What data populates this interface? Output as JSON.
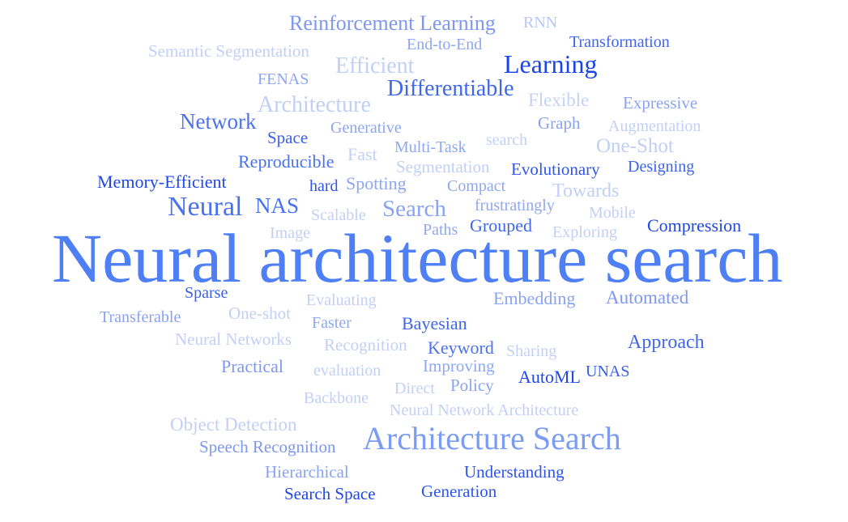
{
  "words": [
    {
      "text": "Neural architecture search",
      "color": "#4f7ff5"
    },
    {
      "text": "Architecture Search",
      "color": "#7a9cf2"
    },
    {
      "text": "Reinforcement Learning",
      "color": "#7d98ee"
    },
    {
      "text": "RNN",
      "color": "#b8c8f5"
    },
    {
      "text": "End-to-End",
      "color": "#8da8f2"
    },
    {
      "text": "Transformation",
      "color": "#3f66ec"
    },
    {
      "text": "Semantic Segmentation",
      "color": "#c2d0f6"
    },
    {
      "text": "Efficient",
      "color": "#c2d0f6"
    },
    {
      "text": "Learning",
      "color": "#1a45e6"
    },
    {
      "text": "FENAS",
      "color": "#8ca6f2"
    },
    {
      "text": "Differentiable",
      "color": "#3e67ec"
    },
    {
      "text": "Architecture",
      "color": "#c0cff6"
    },
    {
      "text": "Flexible",
      "color": "#c5d2f6"
    },
    {
      "text": "Expressive",
      "color": "#8aa4f1"
    },
    {
      "text": "Network",
      "color": "#4a72ee"
    },
    {
      "text": "Space",
      "color": "#3a60eb"
    },
    {
      "text": "Generative",
      "color": "#8ca6f2"
    },
    {
      "text": "Graph",
      "color": "#8aa3f0"
    },
    {
      "text": "Augmentation",
      "color": "#c3d0f6"
    },
    {
      "text": "search",
      "color": "#c3d0f6"
    },
    {
      "text": "Fast",
      "color": "#c3d0f6"
    },
    {
      "text": "Multi-Task",
      "color": "#8ea8f2"
    },
    {
      "text": "One-Shot",
      "color": "#c0cff6"
    },
    {
      "text": "Reproducible",
      "color": "#4a72ee"
    },
    {
      "text": "Segmentation",
      "color": "#c3d0f6"
    },
    {
      "text": "Evolutionary",
      "color": "#2f57ea"
    },
    {
      "text": "Designing",
      "color": "#3a62ec"
    },
    {
      "text": "Memory-Efficient",
      "color": "#1f48e7"
    },
    {
      "text": "hard",
      "color": "#2d55ea"
    },
    {
      "text": "Spotting",
      "color": "#8ca6f2"
    },
    {
      "text": "Compact",
      "color": "#8ea8f2"
    },
    {
      "text": "Towards",
      "color": "#c3d0f6"
    },
    {
      "text": "Neural",
      "color": "#4a72ee"
    },
    {
      "text": "NAS",
      "color": "#4a72ee"
    },
    {
      "text": "Scalable",
      "color": "#c3d0f6"
    },
    {
      "text": "Search",
      "color": "#8aa3f0"
    },
    {
      "text": "frustratingly",
      "color": "#8ea8f2"
    },
    {
      "text": "Mobile",
      "color": "#c3d0f6"
    },
    {
      "text": "Image",
      "color": "#c3d0f6"
    },
    {
      "text": "Paths",
      "color": "#8ea8f2"
    },
    {
      "text": "Grouped",
      "color": "#3e67ec"
    },
    {
      "text": "Exploring",
      "color": "#c3d0f6"
    },
    {
      "text": "Compression",
      "color": "#1f48e7"
    },
    {
      "text": "Sparse",
      "color": "#3a60eb"
    },
    {
      "text": "Evaluating",
      "color": "#c3d0f6"
    },
    {
      "text": "Embedding",
      "color": "#8aa3f0"
    },
    {
      "text": "Automated",
      "color": "#7d98ee"
    },
    {
      "text": "Transferable",
      "color": "#8aa3f0"
    },
    {
      "text": "One-shot",
      "color": "#c3d0f6"
    },
    {
      "text": "Faster",
      "color": "#8ea8f2"
    },
    {
      "text": "Bayesian",
      "color": "#3e67ec"
    },
    {
      "text": "Neural Networks",
      "color": "#c3d0f6"
    },
    {
      "text": "Recognition",
      "color": "#c3d0f6"
    },
    {
      "text": "Keyword",
      "color": "#4a72ee"
    },
    {
      "text": "Sharing",
      "color": "#c3d0f6"
    },
    {
      "text": "Approach",
      "color": "#3e67ec"
    },
    {
      "text": "Practical",
      "color": "#7d98ee"
    },
    {
      "text": "evaluation",
      "color": "#c3d0f6"
    },
    {
      "text": "Improving",
      "color": "#8ea8f2"
    },
    {
      "text": "Direct",
      "color": "#c3d0f6"
    },
    {
      "text": "Policy",
      "color": "#8aa3f0"
    },
    {
      "text": "AutoML",
      "color": "#1f48e7"
    },
    {
      "text": "UNAS",
      "color": "#3a60eb"
    },
    {
      "text": "Backbone",
      "color": "#c3d0f6"
    },
    {
      "text": "Neural Network Architecture",
      "color": "#c3d0f6"
    },
    {
      "text": "Object Detection",
      "color": "#c3d0f6"
    },
    {
      "text": "Speech Recognition",
      "color": "#7d98ee"
    },
    {
      "text": "Hierarchical",
      "color": "#8aa3f0"
    },
    {
      "text": "Understanding",
      "color": "#2d55ea"
    },
    {
      "text": "Search Space",
      "color": "#1f48e7"
    },
    {
      "text": "Generation",
      "color": "#2d55ea"
    }
  ]
}
